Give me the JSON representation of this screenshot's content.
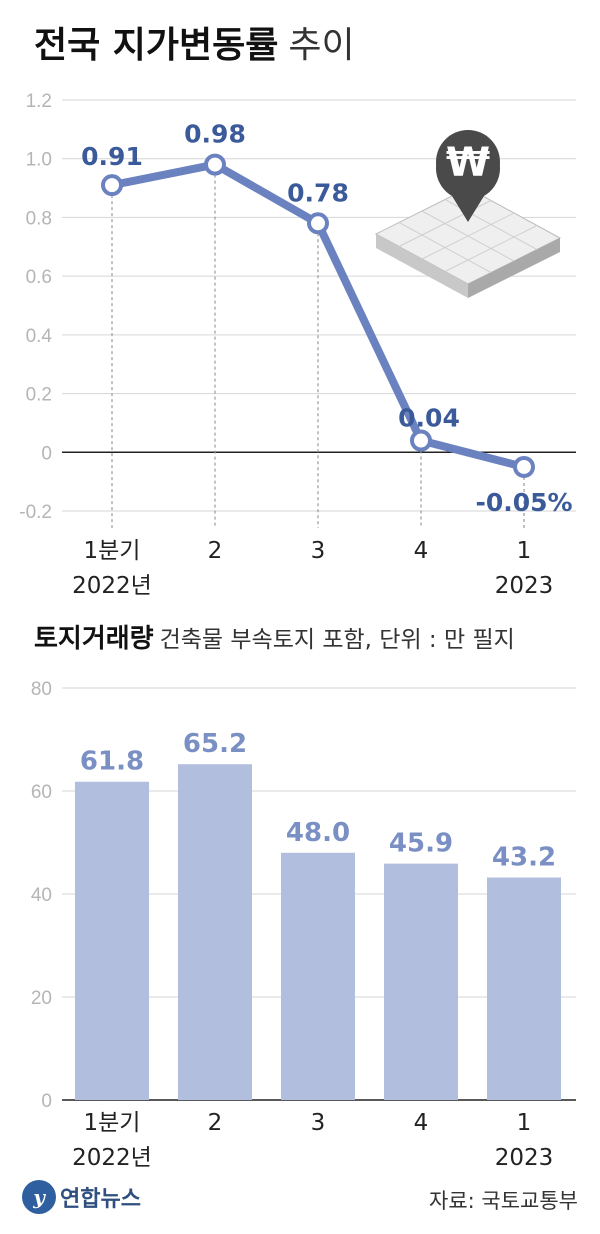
{
  "title": {
    "main": "전국 지가변동률",
    "sub": "추이"
  },
  "bar_title": {
    "main": "토지거래량",
    "sub": "건축물 부속토지 포함, 단위 : 만 필지"
  },
  "footer": {
    "logo_mark": "y",
    "logo_text": "연합뉴스",
    "source": "자료: 국토교통부"
  },
  "colors": {
    "line": "#6b82c0",
    "bar": "#b2bedd",
    "label": "#3b5a99",
    "bar_label": "#7a8fc4"
  },
  "chart_data": [
    {
      "type": "line",
      "categories": [
        [
          "1분기",
          "2022년"
        ],
        [
          "2"
        ],
        [
          "3"
        ],
        [
          "4"
        ],
        [
          "1",
          "2023"
        ]
      ],
      "values": [
        0.91,
        0.98,
        0.78,
        0.04,
        -0.05
      ],
      "data_labels": [
        "0.91",
        "0.98",
        "0.78",
        "0.04",
        "-0.05%"
      ],
      "ylim": [
        -0.2,
        1.2
      ],
      "yticks": [
        "-0.2",
        "0",
        "0.2",
        "0.4",
        "0.6",
        "0.8",
        "1.0",
        "1.2"
      ],
      "ytick_values": [
        -0.2,
        0,
        0.2,
        0.4,
        0.6,
        0.8,
        1.0,
        1.2
      ],
      "grid": true,
      "icon": "won-land-icon"
    },
    {
      "type": "bar",
      "categories": [
        [
          "1분기",
          "2022년"
        ],
        [
          "2"
        ],
        [
          "3"
        ],
        [
          "4"
        ],
        [
          "1",
          "2023"
        ]
      ],
      "values": [
        61.8,
        65.2,
        48.0,
        45.9,
        43.2
      ],
      "data_labels": [
        "61.8",
        "65.2",
        "48.0",
        "45.9",
        "43.2"
      ],
      "ylim": [
        0,
        80
      ],
      "yticks": [
        "0",
        "20",
        "40",
        "60",
        "80"
      ],
      "ytick_values": [
        0,
        20,
        40,
        60,
        80
      ],
      "grid": true
    }
  ]
}
